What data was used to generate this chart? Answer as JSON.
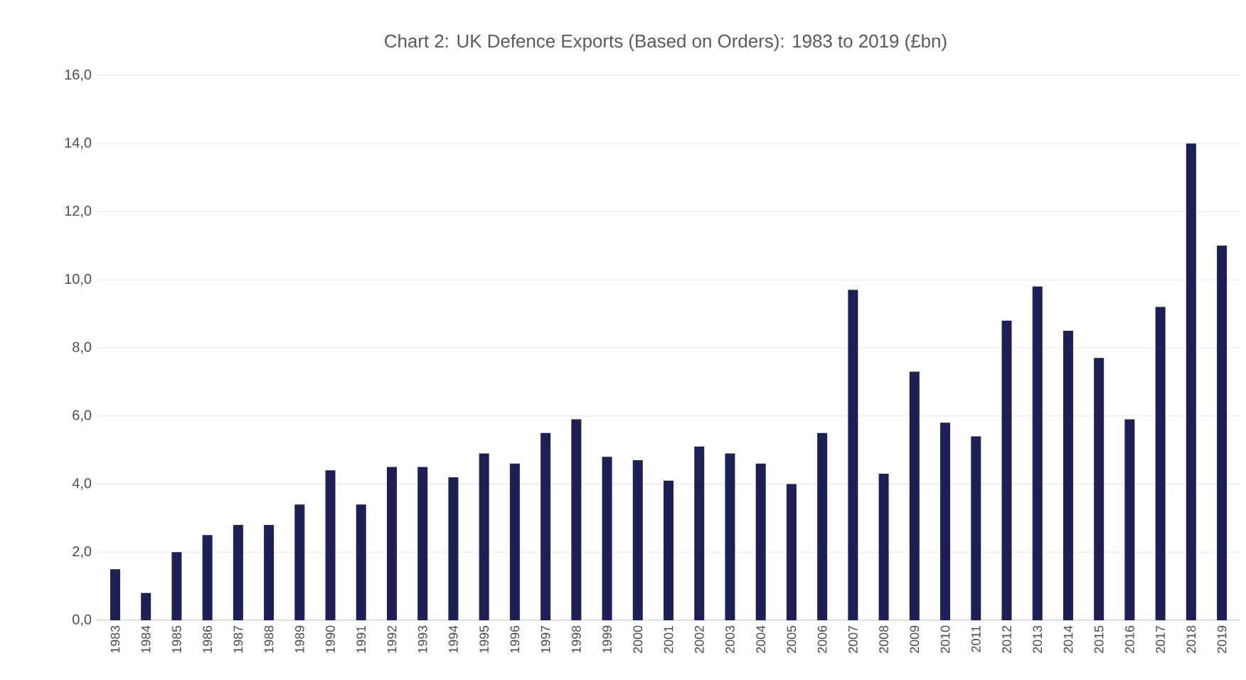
{
  "chart_data": {
    "type": "bar",
    "title": "Chart 2: UK Defence Exports (Based on Orders): 1983 to 2019 (£bn)",
    "categories": [
      "1983",
      "1984",
      "1985",
      "1986",
      "1987",
      "1988",
      "1989",
      "1990",
      "1991",
      "1992",
      "1993",
      "1994",
      "1995",
      "1996",
      "1997",
      "1998",
      "1999",
      "2000",
      "2001",
      "2002",
      "2003",
      "2004",
      "2005",
      "2006",
      "2007",
      "2008",
      "2009",
      "2010",
      "2011",
      "2012",
      "2013",
      "2014",
      "2015",
      "2016",
      "2017",
      "2018",
      "2019"
    ],
    "values": [
      1.5,
      0.8,
      2.0,
      2.5,
      2.8,
      2.8,
      3.4,
      4.4,
      3.4,
      4.5,
      4.5,
      4.2,
      4.9,
      4.6,
      5.5,
      5.9,
      4.8,
      4.7,
      4.1,
      5.1,
      4.9,
      4.6,
      4.0,
      5.5,
      9.7,
      4.3,
      7.3,
      5.8,
      5.4,
      8.8,
      9.8,
      8.5,
      7.7,
      5.9,
      9.2,
      14.0,
      11.0
    ],
    "color": "#1c2056",
    "ylim": [
      0,
      16
    ],
    "yticks": [
      {
        "value": 0,
        "label": "0,0"
      },
      {
        "value": 2,
        "label": "2,0"
      },
      {
        "value": 4,
        "label": "4,0"
      },
      {
        "value": 6,
        "label": "6,0"
      },
      {
        "value": 8,
        "label": "8,0"
      },
      {
        "value": 10,
        "label": "10,0"
      },
      {
        "value": 12,
        "label": "12,0"
      },
      {
        "value": 14,
        "label": "14,0"
      },
      {
        "value": 16,
        "label": "16,0"
      }
    ],
    "grid": "y"
  }
}
